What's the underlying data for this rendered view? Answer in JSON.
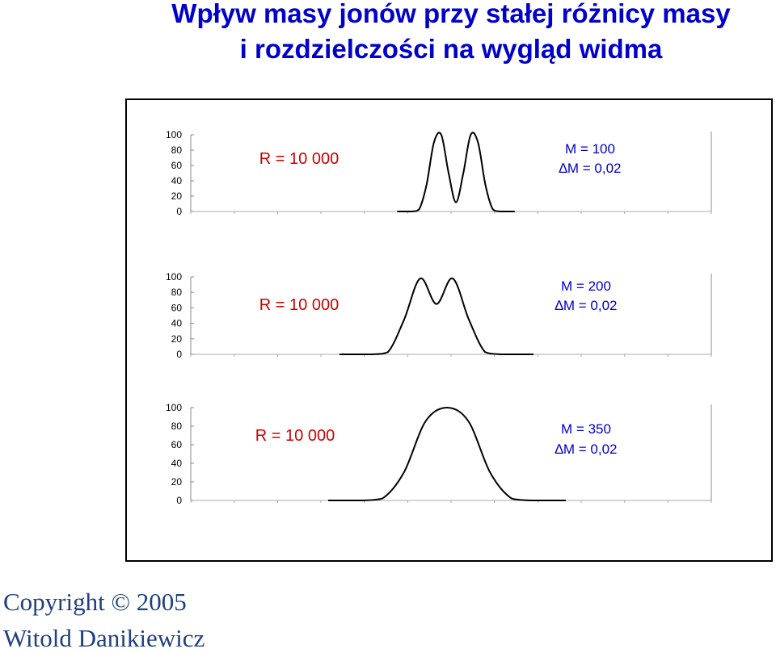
{
  "header": {
    "title_line1": "Wpływ masy jonów przy stałej różnicy masy",
    "title_line2": "i rozdzielczości na wygląd widma"
  },
  "footer": {
    "copyright": "Copyright © 2005",
    "author": "Witold Danikiewicz"
  },
  "colors": {
    "title": "#0000cc",
    "resolution_label": "#cc0000",
    "mass_label": "#0000cc",
    "footer": "#1f3f7f",
    "curve": "#000000"
  },
  "chart_data": [
    {
      "type": "line",
      "ylim": [
        0,
        100
      ],
      "yticks": [
        "100",
        "80",
        "60",
        "40",
        "20",
        "0"
      ],
      "grid": false,
      "annotations": [
        "R = 10 000",
        "M = 100",
        "∆M = 0,02"
      ],
      "series": [
        {
          "x": [
            99.97,
            99.98,
            99.985,
            99.99,
            99.995,
            100.0,
            100.005,
            100.01,
            100.015,
            100.02,
            100.025,
            100.03,
            100.035,
            100.04,
            100.05
          ],
          "y": [
            0,
            0,
            3,
            35,
            90,
            100,
            50,
            12,
            50,
            100,
            90,
            35,
            3,
            0,
            0
          ]
        }
      ]
    },
    {
      "type": "line",
      "ylim": [
        0,
        100
      ],
      "yticks": [
        "100",
        "80",
        "60",
        "40",
        "20",
        "0"
      ],
      "grid": false,
      "annotations": [
        "R = 10 000",
        "M = 200",
        "∆M = 0,02"
      ],
      "series": [
        {
          "x": [
            199.95,
            199.97,
            199.98,
            199.99,
            200.0,
            200.01,
            200.02,
            200.03,
            200.04,
            200.05,
            200.06,
            200.07
          ],
          "y": [
            0,
            0,
            3,
            45,
            98,
            65,
            98,
            45,
            3,
            0,
            0,
            0
          ]
        }
      ]
    },
    {
      "type": "line",
      "ylim": [
        0,
        100
      ],
      "yticks": [
        "100",
        "80",
        "60",
        "40",
        "20",
        "0"
      ],
      "grid": false,
      "annotations": [
        "R = 10 000",
        "M = 350",
        "∆M = 0,02"
      ],
      "series": [
        {
          "x": [
            349.9,
            349.93,
            349.95,
            349.97,
            349.99,
            350.01,
            350.03,
            350.05,
            350.07,
            350.09,
            350.12
          ],
          "y": [
            0,
            0,
            2,
            30,
            85,
            100,
            85,
            30,
            2,
            0,
            0
          ]
        }
      ]
    }
  ]
}
